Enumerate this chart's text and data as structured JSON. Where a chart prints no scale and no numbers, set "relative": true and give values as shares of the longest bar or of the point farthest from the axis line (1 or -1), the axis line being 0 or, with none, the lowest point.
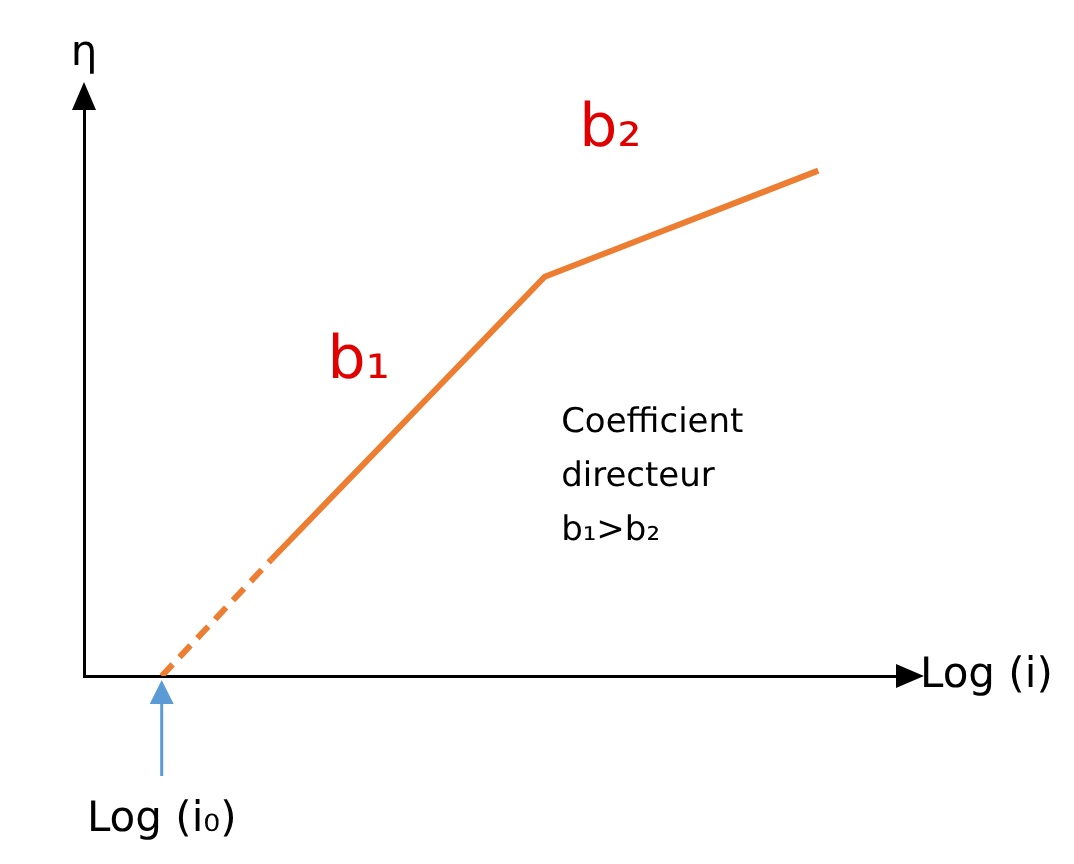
{
  "chart_data": {
    "type": "line",
    "relative": true,
    "xlabel": "Log (i)",
    "ylabel": "η",
    "grid": false,
    "legend": false,
    "marker": "none",
    "categories": [
      null,
      null,
      null,
      null,
      null,
      null,
      null,
      null,
      null,
      null,
      null,
      null,
      null
    ],
    "series": [
      {
        "color": "#ed7d31",
        "line_style": "dashed",
        "values": [
          0,
          0.115,
          0.23,
          null,
          null,
          null,
          null,
          null,
          null,
          null,
          null,
          null,
          null
        ]
      },
      {
        "color": "#ed7d31",
        "line_style": "solid",
        "values": [
          null,
          null,
          0.23,
          0.342,
          0.454,
          0.566,
          0.678,
          0.79,
          0.832,
          0.874,
          0.916,
          0.958,
          1
        ]
      }
    ],
    "annotations": [
      "b₁",
      "b₂",
      "Coefficient\ndirecteur\nb₁>b₂",
      "Log (i₀)"
    ]
  }
}
